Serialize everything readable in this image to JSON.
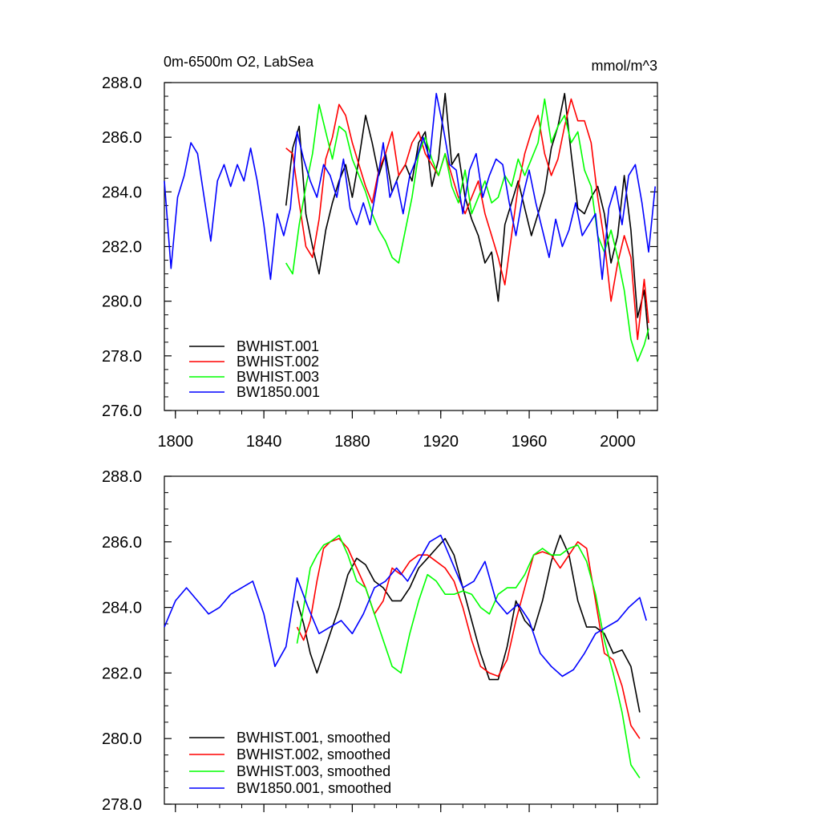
{
  "chart_data": [
    {
      "type": "line",
      "title": "0m-6500m O2, LabSea",
      "units": "mmol/m^3",
      "xlabel": "",
      "ylabel": "",
      "xlim": [
        1795,
        2018
      ],
      "ylim": [
        276,
        288
      ],
      "xticks": [
        1800,
        1840,
        1880,
        1920,
        1960,
        2000
      ],
      "xtick_labels": [
        "1800",
        "1840",
        "1880",
        "1920",
        "1960",
        "2000"
      ],
      "yticks": [
        276,
        278,
        280,
        282,
        284,
        286,
        288
      ],
      "ytick_labels": [
        "276.0",
        "278.0",
        "280.0",
        "282.0",
        "284.0",
        "286.0",
        "288.0"
      ],
      "legend_position": "bottom-left",
      "series": [
        {
          "name": "BWHIST.001",
          "color": "#000000",
          "x": [
            1850,
            1853,
            1856,
            1859,
            1862,
            1865,
            1868,
            1871,
            1874,
            1877,
            1880,
            1883,
            1886,
            1889,
            1892,
            1895,
            1898,
            1901,
            1904,
            1907,
            1910,
            1913,
            1916,
            1919,
            1922,
            1925,
            1928,
            1931,
            1934,
            1937,
            1940,
            1943,
            1946,
            1949,
            1952,
            1955,
            1958,
            1961,
            1964,
            1967,
            1970,
            1973,
            1976,
            1979,
            1982,
            1985,
            1988,
            1991,
            1994,
            1997,
            2000,
            2003,
            2006,
            2009,
            2012,
            2014
          ],
          "y": [
            283.5,
            285.6,
            286.4,
            283.2,
            282.0,
            281.0,
            282.6,
            283.6,
            284.4,
            285.0,
            283.8,
            285.2,
            286.8,
            285.8,
            284.6,
            285.4,
            284.0,
            284.6,
            285.0,
            284.4,
            285.8,
            286.2,
            284.2,
            285.2,
            287.6,
            285.0,
            285.4,
            283.8,
            283.0,
            282.4,
            281.4,
            281.8,
            280.0,
            282.8,
            283.6,
            284.4,
            283.4,
            282.4,
            283.2,
            284.0,
            285.6,
            286.4,
            287.6,
            285.4,
            283.4,
            283.2,
            283.8,
            284.2,
            283.2,
            281.4,
            282.4,
            284.6,
            282.6,
            279.4,
            280.4,
            278.6
          ]
        },
        {
          "name": "BWHIST.002",
          "color": "#ff0000",
          "x": [
            1850,
            1853,
            1856,
            1859,
            1862,
            1865,
            1868,
            1871,
            1874,
            1877,
            1880,
            1883,
            1886,
            1889,
            1892,
            1895,
            1898,
            1901,
            1904,
            1907,
            1910,
            1913,
            1916,
            1919,
            1922,
            1925,
            1928,
            1931,
            1934,
            1937,
            1940,
            1943,
            1946,
            1949,
            1952,
            1955,
            1958,
            1961,
            1964,
            1967,
            1970,
            1973,
            1976,
            1979,
            1982,
            1985,
            1988,
            1991,
            1994,
            1997,
            2000,
            2003,
            2006,
            2009,
            2012,
            2014
          ],
          "y": [
            285.6,
            285.4,
            283.6,
            282.0,
            281.6,
            283.0,
            285.2,
            286.0,
            287.2,
            286.8,
            285.8,
            285.0,
            284.2,
            283.6,
            284.8,
            285.4,
            286.2,
            284.6,
            285.0,
            285.8,
            286.2,
            285.4,
            285.0,
            284.6,
            285.4,
            284.6,
            283.8,
            283.2,
            283.8,
            284.4,
            283.2,
            282.4,
            281.6,
            280.6,
            282.4,
            284.2,
            285.4,
            286.2,
            286.8,
            285.4,
            284.6,
            285.2,
            286.4,
            287.4,
            286.6,
            286.6,
            285.8,
            283.8,
            282.2,
            280.0,
            281.4,
            282.4,
            281.6,
            278.6,
            280.8,
            279.2
          ]
        },
        {
          "name": "BWHIST.003",
          "color": "#00ff00",
          "x": [
            1850,
            1853,
            1856,
            1859,
            1862,
            1865,
            1868,
            1871,
            1874,
            1877,
            1880,
            1883,
            1886,
            1889,
            1892,
            1895,
            1898,
            1901,
            1904,
            1907,
            1910,
            1913,
            1916,
            1919,
            1922,
            1925,
            1928,
            1931,
            1934,
            1937,
            1940,
            1943,
            1946,
            1949,
            1952,
            1955,
            1958,
            1961,
            1964,
            1967,
            1970,
            1973,
            1976,
            1979,
            1982,
            1985,
            1988,
            1991,
            1994,
            1997,
            2000,
            2003,
            2006,
            2009,
            2012,
            2014
          ],
          "y": [
            281.4,
            281.0,
            282.8,
            284.2,
            285.4,
            287.2,
            286.2,
            285.2,
            286.4,
            286.2,
            285.2,
            284.6,
            284.0,
            283.2,
            282.6,
            282.2,
            281.6,
            281.4,
            282.6,
            283.8,
            285.4,
            286.0,
            285.2,
            284.6,
            285.4,
            284.2,
            283.6,
            284.8,
            283.2,
            283.8,
            284.4,
            283.6,
            283.8,
            284.6,
            284.2,
            285.2,
            284.6,
            285.2,
            285.8,
            287.4,
            285.8,
            286.4,
            286.8,
            285.8,
            286.2,
            284.8,
            284.2,
            282.4,
            281.8,
            282.6,
            281.6,
            280.4,
            278.6,
            277.8,
            278.4,
            279.0
          ]
        },
        {
          "name": "BW1850.001",
          "color": "#0000ff",
          "x": [
            1795,
            1798,
            1801,
            1804,
            1807,
            1810,
            1813,
            1816,
            1819,
            1822,
            1825,
            1828,
            1831,
            1834,
            1837,
            1840,
            1843,
            1846,
            1849,
            1852,
            1855,
            1858,
            1861,
            1864,
            1867,
            1870,
            1873,
            1876,
            1879,
            1882,
            1885,
            1888,
            1891,
            1894,
            1897,
            1900,
            1903,
            1906,
            1909,
            1912,
            1915,
            1918,
            1921,
            1924,
            1927,
            1930,
            1933,
            1936,
            1939,
            1942,
            1945,
            1948,
            1951,
            1954,
            1957,
            1960,
            1963,
            1966,
            1969,
            1972,
            1975,
            1978,
            1981,
            1984,
            1987,
            1990,
            1993,
            1996,
            1999,
            2002,
            2005,
            2008,
            2011,
            2014,
            2017
          ],
          "y": [
            284.4,
            281.2,
            283.8,
            284.6,
            285.8,
            285.4,
            283.8,
            282.2,
            284.4,
            285.0,
            284.2,
            285.0,
            284.4,
            285.6,
            284.4,
            282.8,
            280.8,
            283.2,
            282.4,
            283.4,
            286.2,
            285.2,
            284.4,
            283.8,
            285.0,
            284.6,
            283.8,
            285.2,
            283.4,
            282.8,
            283.6,
            282.8,
            284.2,
            285.8,
            283.8,
            284.4,
            283.2,
            284.6,
            285.2,
            286.0,
            285.2,
            287.6,
            286.4,
            285.0,
            284.8,
            283.2,
            284.8,
            285.4,
            283.8,
            284.6,
            285.2,
            285.0,
            283.6,
            282.4,
            283.8,
            284.8,
            283.6,
            282.6,
            281.6,
            283.0,
            282.0,
            282.6,
            283.6,
            282.4,
            282.8,
            283.2,
            280.8,
            283.4,
            284.2,
            282.8,
            284.6,
            285.0,
            283.6,
            281.8,
            284.2
          ]
        }
      ]
    },
    {
      "type": "line",
      "title": "",
      "xlabel": "",
      "ylabel": "",
      "xlim": [
        1795,
        2018
      ],
      "ylim": [
        278,
        288
      ],
      "xticks": [
        1800,
        1840,
        1880,
        1920,
        1960,
        2000
      ],
      "yticks": [
        278,
        280,
        282,
        284,
        286,
        288
      ],
      "ytick_labels": [
        "278.0",
        "280.0",
        "282.0",
        "284.0",
        "286.0",
        "288.0"
      ],
      "legend_position": "bottom-left",
      "series": [
        {
          "name": "BWHIST.001, smoothed",
          "color": "#000000",
          "x": [
            1855,
            1858,
            1861,
            1864,
            1867,
            1870,
            1874,
            1878,
            1882,
            1886,
            1890,
            1894,
            1898,
            1902,
            1906,
            1910,
            1914,
            1918,
            1922,
            1926,
            1930,
            1934,
            1938,
            1942,
            1946,
            1950,
            1954,
            1958,
            1962,
            1966,
            1970,
            1974,
            1978,
            1982,
            1986,
            1990,
            1994,
            1998,
            2002,
            2006,
            2010
          ],
          "y": [
            284.2,
            283.5,
            282.6,
            282.0,
            282.6,
            283.2,
            284.0,
            285.0,
            285.5,
            285.3,
            284.8,
            284.6,
            284.2,
            284.2,
            284.6,
            285.2,
            285.5,
            285.8,
            286.1,
            285.6,
            284.6,
            283.6,
            282.6,
            281.8,
            281.8,
            282.8,
            284.2,
            283.6,
            283.3,
            284.2,
            285.4,
            286.2,
            285.6,
            284.2,
            283.4,
            283.4,
            283.2,
            282.6,
            282.7,
            282.2,
            280.8
          ]
        },
        {
          "name": "BWHIST.002, smoothed",
          "color": "#ff0000",
          "x": [
            1855,
            1858,
            1861,
            1864,
            1867,
            1870,
            1874,
            1878,
            1882,
            1886,
            1890,
            1894,
            1898,
            1902,
            1906,
            1910,
            1914,
            1918,
            1922,
            1926,
            1930,
            1934,
            1938,
            1942,
            1946,
            1950,
            1954,
            1958,
            1962,
            1966,
            1970,
            1974,
            1978,
            1982,
            1986,
            1990,
            1994,
            1998,
            2002,
            2006,
            2010
          ],
          "y": [
            283.4,
            283.0,
            283.6,
            284.8,
            285.8,
            286.0,
            286.1,
            285.8,
            285.2,
            284.6,
            283.8,
            284.2,
            285.2,
            285.0,
            285.4,
            285.6,
            285.6,
            285.4,
            285.2,
            284.8,
            284.0,
            283.0,
            282.2,
            282.0,
            281.9,
            282.4,
            283.6,
            284.6,
            285.6,
            285.7,
            285.6,
            285.2,
            285.6,
            286.0,
            285.8,
            284.2,
            282.6,
            282.4,
            281.6,
            280.4,
            280.0
          ]
        },
        {
          "name": "BWHIST.003, smoothed",
          "color": "#00ff00",
          "x": [
            1855,
            1858,
            1861,
            1864,
            1867,
            1870,
            1874,
            1878,
            1882,
            1886,
            1890,
            1894,
            1898,
            1902,
            1906,
            1910,
            1914,
            1918,
            1922,
            1926,
            1930,
            1934,
            1938,
            1942,
            1946,
            1950,
            1954,
            1958,
            1962,
            1966,
            1970,
            1974,
            1978,
            1982,
            1986,
            1990,
            1994,
            1998,
            2002,
            2006,
            2010
          ],
          "y": [
            282.9,
            284.0,
            285.2,
            285.6,
            285.9,
            286.0,
            286.2,
            285.6,
            284.8,
            284.6,
            283.8,
            283.0,
            282.2,
            282.0,
            283.2,
            284.2,
            285.0,
            284.8,
            284.4,
            284.4,
            284.5,
            284.4,
            284.0,
            283.8,
            284.4,
            284.6,
            284.6,
            285.0,
            285.6,
            285.8,
            285.6,
            285.6,
            285.8,
            285.9,
            285.4,
            284.4,
            283.0,
            282.0,
            280.8,
            279.2,
            278.8
          ]
        },
        {
          "name": "BW1850.001, smoothed",
          "color": "#0000ff",
          "x": [
            1795,
            1800,
            1805,
            1810,
            1815,
            1820,
            1825,
            1830,
            1835,
            1840,
            1845,
            1850,
            1855,
            1860,
            1865,
            1870,
            1875,
            1880,
            1885,
            1890,
            1895,
            1900,
            1905,
            1910,
            1915,
            1920,
            1925,
            1930,
            1935,
            1940,
            1945,
            1950,
            1955,
            1960,
            1965,
            1970,
            1975,
            1980,
            1985,
            1990,
            1995,
            2000,
            2005,
            2010,
            2013
          ],
          "y": [
            283.4,
            284.2,
            284.6,
            284.2,
            283.8,
            284.0,
            284.4,
            284.6,
            284.8,
            283.8,
            282.2,
            282.8,
            284.9,
            284.0,
            283.2,
            283.4,
            283.6,
            283.2,
            283.8,
            284.6,
            284.8,
            285.2,
            284.8,
            285.4,
            286.0,
            286.2,
            285.4,
            284.6,
            284.8,
            285.4,
            284.2,
            283.8,
            284.1,
            283.6,
            282.6,
            282.2,
            281.9,
            282.1,
            282.6,
            283.2,
            283.4,
            283.6,
            284.0,
            284.3,
            283.6
          ]
        }
      ]
    }
  ]
}
